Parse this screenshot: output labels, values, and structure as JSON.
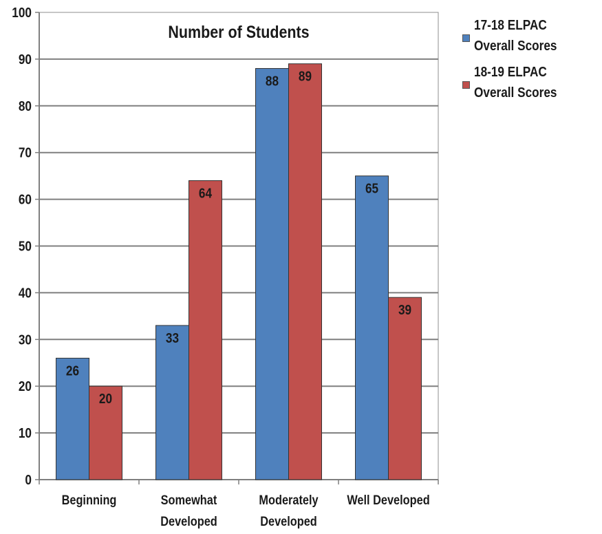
{
  "chart_data": {
    "type": "bar",
    "title": "Number of Students",
    "categories": [
      "Beginning",
      "Somewhat Developed",
      "Moderately Developed",
      "Well Developed"
    ],
    "category_label_lines": [
      [
        "Beginning"
      ],
      [
        "Somewhat",
        "Developed"
      ],
      [
        "Moderately",
        "Developed"
      ],
      [
        "Well Developed"
      ]
    ],
    "series": [
      {
        "name": "17-18 ELPAC Overall Scores",
        "values": [
          26,
          33,
          88,
          65
        ],
        "color": "#4f81bd"
      },
      {
        "name": "18-19 ELPAC Overall Scores",
        "values": [
          20,
          64,
          89,
          39
        ],
        "color": "#c0504d"
      }
    ],
    "ylim": [
      0,
      100
    ],
    "yticks": [
      0,
      10,
      20,
      30,
      40,
      50,
      60,
      70,
      80,
      90,
      100
    ],
    "grid": true,
    "data_labels": true,
    "legend_position": "right"
  }
}
